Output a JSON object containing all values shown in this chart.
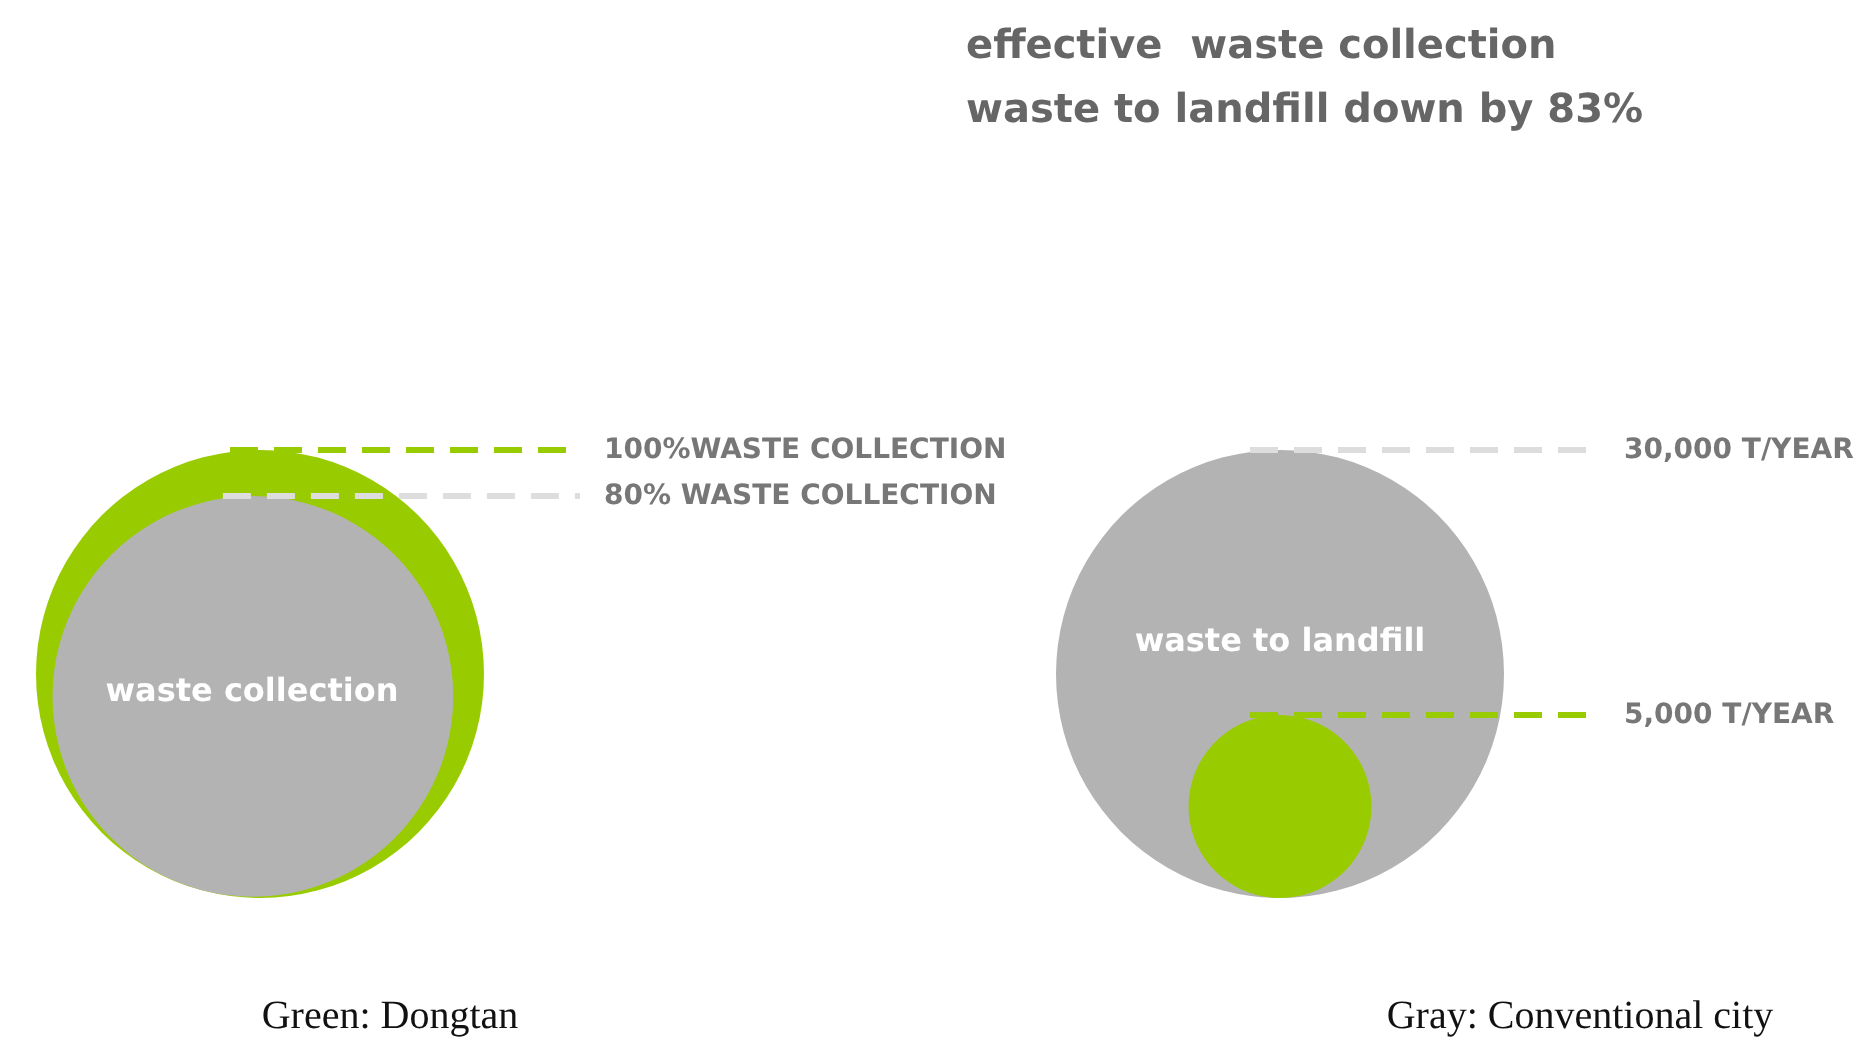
{
  "chart_data": [
    {
      "type": "other",
      "title": "effective  waste collection",
      "subtitle": "waste to landfill down by 83%"
    },
    {
      "type": "other",
      "values": [
        100,
        80
      ],
      "colors": [
        "#99cc00",
        "#b3b3b3"
      ],
      "value_labels": [
        "100%WASTE COLLECTION",
        "80% WASTE COLLECTION"
      ],
      "annotations": [
        "waste collection",
        "Green: Dongtan"
      ]
    },
    {
      "type": "other",
      "values": [
        30000,
        5000
      ],
      "colors": [
        "#b3b3b3",
        "#99cc00"
      ],
      "value_labels": [
        "30,000 T/YEAR",
        "5,000 T/YEAR"
      ],
      "annotations": [
        "waste to landfill",
        "Gray: Conventional city"
      ]
    }
  ]
}
